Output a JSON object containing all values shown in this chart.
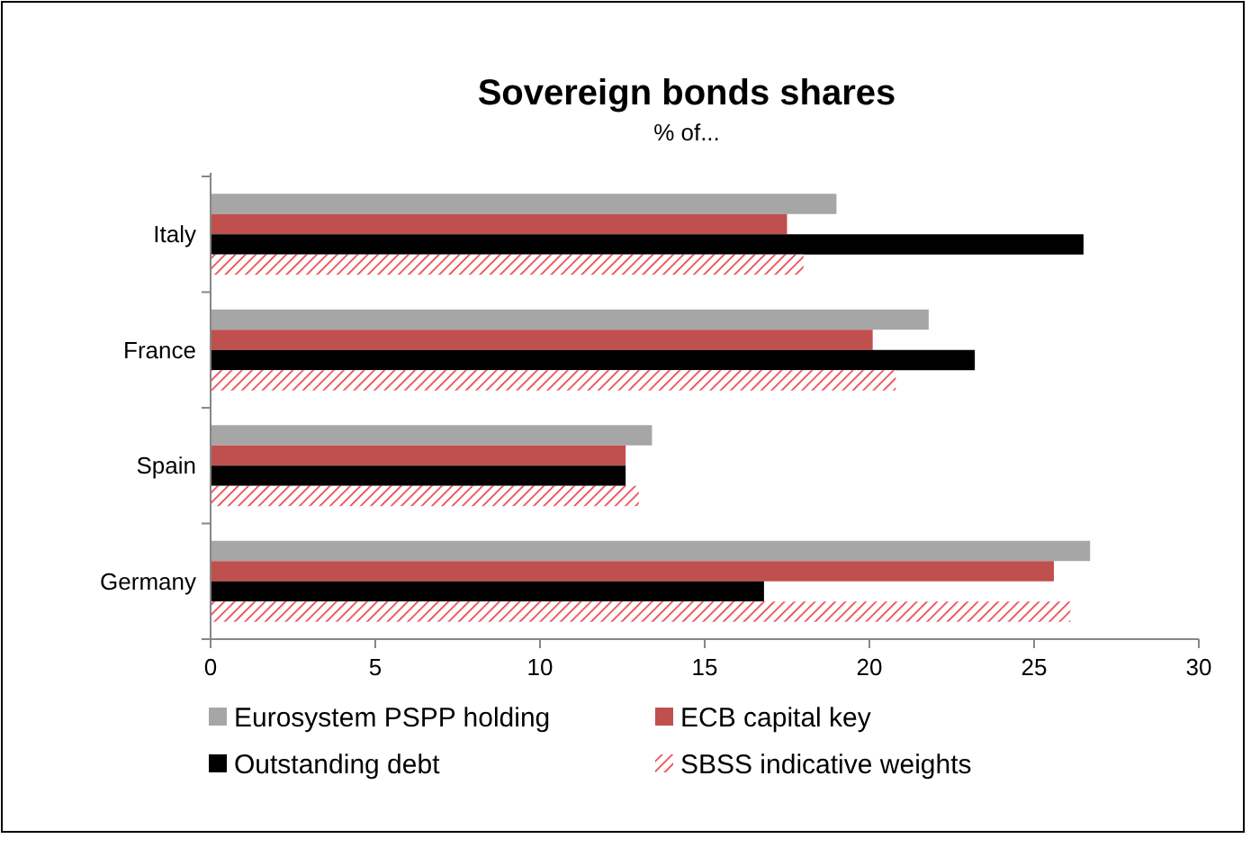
{
  "chart_data": {
    "type": "bar",
    "orientation": "horizontal",
    "title": "Sovereign bonds shares",
    "subtitle": "% of...",
    "categories": [
      "Italy",
      "France",
      "Spain",
      "Germany"
    ],
    "series": [
      {
        "name": "Eurosystem PSPP holding",
        "color": "#a6a6a6",
        "values": [
          19.0,
          21.8,
          13.4,
          26.7
        ]
      },
      {
        "name": "ECB capital key",
        "color": "#c0504d",
        "values": [
          17.5,
          20.1,
          12.6,
          25.6
        ]
      },
      {
        "name": "Outstanding debt",
        "color": "#000000",
        "values": [
          26.5,
          23.2,
          12.6,
          16.8
        ]
      },
      {
        "name": "SBSS indicative weights",
        "color": "#e8383d",
        "values": [
          18.0,
          20.8,
          13.0,
          26.1
        ]
      }
    ],
    "xlim": [
      0,
      30
    ],
    "xticks": [
      0,
      5,
      10,
      15,
      20,
      25,
      30
    ],
    "grid": false,
    "legend": "bottom"
  }
}
